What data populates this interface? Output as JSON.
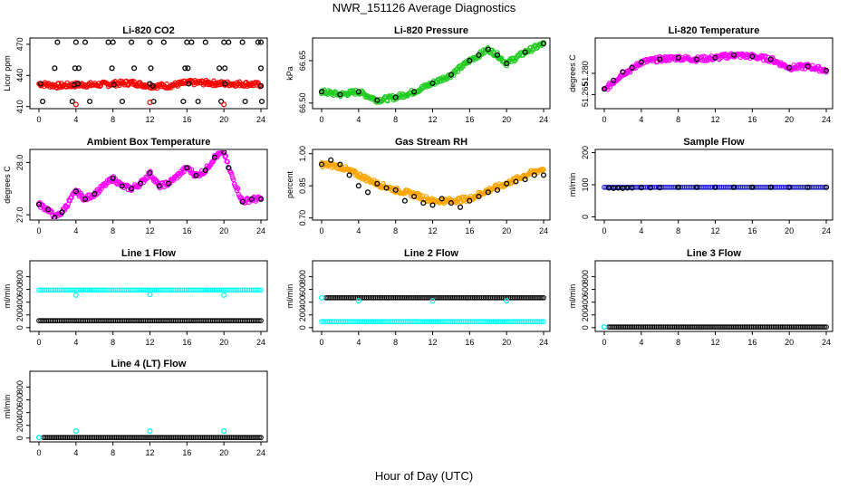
{
  "title": "NWR_151126  Average Diagnostics",
  "x_axis_title": "Hour of Day (UTC)",
  "colors": {
    "black": "#000000",
    "red": "#ff0000",
    "green": "#22cc22",
    "magenta": "#ff00ff",
    "orange": "#ffa500",
    "blue": "#1f1fcc",
    "cyan": "#00ffff"
  },
  "chart_data": [
    {
      "type": "scatter",
      "title": "Li-820 CO2",
      "ylabel": "Licor ppm",
      "xlim": [
        0,
        24
      ],
      "ylim": [
        408,
        476
      ],
      "x_ticks": [
        "0",
        "4",
        "8",
        "12",
        "16",
        "20",
        "24"
      ],
      "y_ticks": [
        "410",
        "440",
        "470"
      ],
      "series": [
        {
          "color": "red",
          "kind": "band",
          "x": [
            0,
            2,
            4,
            6,
            8,
            10,
            12,
            14,
            16,
            18,
            20,
            22,
            24
          ],
          "y": [
            432,
            430,
            431,
            431,
            432,
            433,
            430,
            430,
            433,
            433,
            432,
            432,
            431
          ]
        },
        {
          "color": "black",
          "kind": "points",
          "x": [
            0.2,
            3.8,
            4.2,
            8.1,
            12,
            12.3,
            16.2,
            20.1,
            24
          ],
          "y": [
            432,
            431,
            432,
            431,
            432,
            430,
            432,
            432,
            430
          ]
        },
        {
          "color": "black",
          "kind": "points",
          "x": [
            2,
            4,
            5,
            7.5,
            8,
            10,
            12,
            13.5,
            16,
            16.5,
            18,
            20,
            20.5,
            22,
            23.7,
            24
          ],
          "y": [
            472,
            472,
            472,
            472,
            472,
            472,
            472,
            472,
            472,
            472,
            472,
            472,
            472,
            472,
            472,
            472
          ]
        },
        {
          "color": "black",
          "kind": "points",
          "x": [
            1.7,
            3.9,
            4.3,
            7.9,
            10.3,
            12.1,
            15.8,
            16.1,
            19.5,
            20.1,
            24
          ],
          "y": [
            447,
            447,
            447,
            447,
            447,
            447,
            447,
            447,
            447,
            447,
            447
          ]
        },
        {
          "color": "black",
          "kind": "points",
          "x": [
            0.4,
            3.6,
            5.5,
            9,
            12.4,
            15.6,
            17.2,
            19.7,
            22.3,
            24.1
          ],
          "y": [
            415,
            415,
            415,
            415,
            415,
            415,
            415,
            415,
            415,
            415
          ]
        },
        {
          "color": "red",
          "kind": "points",
          "x": [
            4,
            12,
            20
          ],
          "y": [
            412,
            414,
            412
          ]
        }
      ]
    },
    {
      "type": "scatter",
      "title": "Li-820 Pressure",
      "ylabel": "kPa",
      "xlim": [
        0,
        24
      ],
      "ylim": [
        66.48,
        66.73
      ],
      "x_ticks": [
        "0",
        "4",
        "8",
        "12",
        "16",
        "20",
        "24"
      ],
      "y_ticks": [
        "66.50",
        "66.65"
      ],
      "series": [
        {
          "color": "green",
          "kind": "band",
          "x": [
            0,
            2,
            4,
            6,
            8,
            10,
            12,
            14,
            16,
            17,
            18,
            19,
            20,
            22,
            24
          ],
          "y": [
            66.54,
            66.53,
            66.54,
            66.51,
            66.52,
            66.54,
            66.57,
            66.6,
            66.65,
            66.67,
            66.69,
            66.67,
            66.64,
            66.68,
            66.71
          ]
        },
        {
          "color": "black",
          "kind": "points",
          "x": [
            0,
            2,
            4,
            6,
            8,
            10,
            12,
            14,
            16,
            17,
            18,
            19,
            20,
            22,
            24
          ],
          "y": [
            66.54,
            66.53,
            66.54,
            66.51,
            66.52,
            66.54,
            66.57,
            66.6,
            66.65,
            66.67,
            66.69,
            66.67,
            66.64,
            66.68,
            66.71
          ]
        }
      ]
    },
    {
      "type": "scatter",
      "title": "Li-820 Temperature",
      "ylabel": "degrees C",
      "xlim": [
        0,
        24
      ],
      "ylim": [
        51.255,
        51.305
      ],
      "x_ticks": [
        "0",
        "4",
        "8",
        "12",
        "16",
        "20",
        "24"
      ],
      "y_ticks": [
        "51.265",
        "51.280"
      ],
      "series": [
        {
          "color": "magenta",
          "kind": "band",
          "x": [
            0,
            1,
            2,
            3,
            4,
            6,
            8,
            10,
            12,
            14,
            16,
            18,
            20,
            22,
            24
          ],
          "y": [
            51.268,
            51.274,
            51.28,
            51.283,
            51.288,
            51.29,
            51.291,
            51.29,
            51.291,
            51.293,
            51.292,
            51.29,
            51.284,
            51.285,
            51.282
          ]
        },
        {
          "color": "black",
          "kind": "points",
          "x": [
            0,
            1,
            2,
            3,
            4,
            6,
            8,
            10,
            12,
            14,
            16,
            18,
            20,
            22,
            24
          ],
          "y": [
            51.269,
            51.275,
            51.281,
            51.284,
            51.288,
            51.29,
            51.291,
            51.29,
            51.291,
            51.293,
            51.292,
            51.29,
            51.284,
            51.285,
            51.282
          ]
        }
      ]
    },
    {
      "type": "scatter",
      "title": "Ambient Box Temperature",
      "ylabel": "degrees C",
      "xlim": [
        0,
        24
      ],
      "ylim": [
        26.9,
        28.25
      ],
      "x_ticks": [
        "0",
        "4",
        "8",
        "12",
        "16",
        "20",
        "24"
      ],
      "y_ticks": [
        "27.0",
        "28.0"
      ],
      "series": [
        {
          "color": "magenta",
          "kind": "band",
          "x": [
            0,
            1,
            1.7,
            2.5,
            4,
            5,
            6,
            8,
            9,
            10,
            11,
            12,
            13,
            14,
            16,
            17,
            18,
            19,
            20,
            20.5,
            22,
            23,
            24
          ],
          "y": [
            27.2,
            27.1,
            26.95,
            27.05,
            27.45,
            27.3,
            27.4,
            27.7,
            27.55,
            27.5,
            27.6,
            27.8,
            27.55,
            27.6,
            27.9,
            27.75,
            27.85,
            28.1,
            28.2,
            27.9,
            27.25,
            27.3,
            27.3
          ]
        },
        {
          "color": "black",
          "kind": "points",
          "x": [
            0,
            1,
            1.7,
            2.5,
            4,
            5,
            6,
            8,
            9,
            10,
            11,
            12,
            13,
            14,
            16,
            17,
            18,
            19,
            20,
            20.5,
            22,
            23,
            24
          ],
          "y": [
            27.2,
            27.1,
            26.95,
            27.05,
            27.45,
            27.3,
            27.4,
            27.7,
            27.55,
            27.5,
            27.6,
            27.8,
            27.55,
            27.6,
            27.9,
            27.75,
            27.85,
            28.1,
            28.2,
            27.9,
            27.25,
            27.3,
            27.3
          ]
        }
      ]
    },
    {
      "type": "scatter",
      "title": "Gas Stream RH",
      "ylabel": "percent",
      "xlim": [
        0,
        24
      ],
      "ylim": [
        0.69,
        1.02
      ],
      "x_ticks": [
        "0",
        "4",
        "8",
        "12",
        "16",
        "20",
        "24"
      ],
      "y_ticks": [
        "0.70",
        "0.85",
        "1.00"
      ],
      "series": [
        {
          "color": "orange",
          "kind": "band",
          "x": [
            0,
            2,
            4,
            6,
            8,
            10,
            12,
            14,
            16,
            18,
            20,
            22,
            24
          ],
          "y": [
            0.95,
            0.94,
            0.9,
            0.86,
            0.83,
            0.81,
            0.78,
            0.78,
            0.79,
            0.83,
            0.86,
            0.9,
            0.93
          ]
        },
        {
          "color": "black",
          "kind": "points",
          "x": [
            0,
            1,
            2,
            3,
            4,
            5,
            6,
            7,
            8,
            9,
            10,
            11,
            12,
            13,
            14,
            15,
            16,
            17,
            18,
            19,
            20,
            21,
            22,
            23,
            24
          ],
          "y": [
            0.95,
            0.97,
            0.95,
            0.9,
            0.85,
            0.82,
            0.86,
            0.84,
            0.83,
            0.78,
            0.8,
            0.77,
            0.76,
            0.79,
            0.77,
            0.75,
            0.78,
            0.8,
            0.82,
            0.83,
            0.86,
            0.87,
            0.88,
            0.9,
            0.9
          ]
        }
      ]
    },
    {
      "type": "scatter",
      "title": "Sample Flow",
      "ylabel": "ml/min",
      "xlim": [
        0,
        24
      ],
      "ylim": [
        -10,
        210
      ],
      "x_ticks": [
        "0",
        "4",
        "8",
        "12",
        "16",
        "20",
        "24"
      ],
      "y_ticks": [
        "0",
        "100",
        "200"
      ],
      "series": [
        {
          "color": "blue",
          "kind": "line",
          "x": [
            0,
            24
          ],
          "y": [
            92,
            92
          ]
        },
        {
          "color": "black",
          "kind": "points",
          "x": [
            0.5,
            1,
            1.5,
            2,
            2.5,
            3,
            4,
            5,
            6,
            8,
            10,
            12,
            14,
            16,
            18,
            20,
            22,
            24
          ],
          "y": [
            90,
            89,
            90,
            89,
            90,
            90,
            91,
            91,
            91,
            92,
            92,
            92,
            92,
            92,
            92,
            92,
            92,
            92
          ]
        }
      ]
    },
    {
      "type": "scatter",
      "title": "Line 1 Flow",
      "ylabel": "ml/min",
      "xlim": [
        0,
        24
      ],
      "ylim": [
        -60,
        1050
      ],
      "x_ticks": [
        "0",
        "4",
        "8",
        "12",
        "16",
        "20",
        "24"
      ],
      "y_ticks": [
        "0",
        "200",
        "400",
        "600",
        "800"
      ],
      "series": [
        {
          "color": "cyan",
          "kind": "line",
          "x": [
            0,
            24
          ],
          "y": [
            590,
            590
          ]
        },
        {
          "color": "cyan",
          "kind": "points",
          "x": [
            4,
            12,
            20
          ],
          "y": [
            510,
            520,
            510
          ]
        },
        {
          "color": "black",
          "kind": "line",
          "x": [
            0,
            24
          ],
          "y": [
            110,
            110
          ]
        }
      ]
    },
    {
      "type": "scatter",
      "title": "Line 2 Flow",
      "ylabel": "ml/min",
      "xlim": [
        0,
        24
      ],
      "ylim": [
        -60,
        1050
      ],
      "x_ticks": [
        "0",
        "4",
        "8",
        "12",
        "16",
        "20",
        "24"
      ],
      "y_ticks": [
        "0",
        "200",
        "400",
        "600",
        "800"
      ],
      "series": [
        {
          "color": "black",
          "kind": "line",
          "x": [
            0.5,
            24
          ],
          "y": [
            470,
            470
          ]
        },
        {
          "color": "cyan",
          "kind": "points",
          "x": [
            0,
            4,
            12,
            20
          ],
          "y": [
            470,
            420,
            420,
            420
          ]
        },
        {
          "color": "cyan",
          "kind": "line",
          "x": [
            0,
            24
          ],
          "y": [
            95,
            95
          ]
        }
      ]
    },
    {
      "type": "scatter",
      "title": "Line 3 Flow",
      "ylabel": "ml/min",
      "xlim": [
        0,
        24
      ],
      "ylim": [
        -60,
        1050
      ],
      "x_ticks": [
        "0",
        "4",
        "8",
        "12",
        "16",
        "20",
        "24"
      ],
      "y_ticks": [
        "0",
        "200",
        "400",
        "600",
        "800"
      ],
      "series": [
        {
          "color": "black",
          "kind": "line",
          "x": [
            0.5,
            24
          ],
          "y": [
            10,
            10
          ]
        },
        {
          "color": "cyan",
          "kind": "points",
          "x": [
            0
          ],
          "y": [
            10
          ]
        }
      ]
    },
    {
      "type": "scatter",
      "title": "Line 4 (LT) Flow",
      "ylabel": "ml/min",
      "xlim": [
        0,
        24
      ],
      "ylim": [
        -60,
        1050
      ],
      "x_ticks": [
        "0",
        "4",
        "8",
        "12",
        "16",
        "20",
        "24"
      ],
      "y_ticks": [
        "0",
        "200",
        "400",
        "600",
        "800"
      ],
      "series": [
        {
          "color": "black",
          "kind": "line",
          "x": [
            0.5,
            24
          ],
          "y": [
            10,
            10
          ]
        },
        {
          "color": "cyan",
          "kind": "points",
          "x": [
            0,
            4,
            12,
            20
          ],
          "y": [
            10,
            110,
            110,
            110
          ]
        }
      ]
    }
  ]
}
